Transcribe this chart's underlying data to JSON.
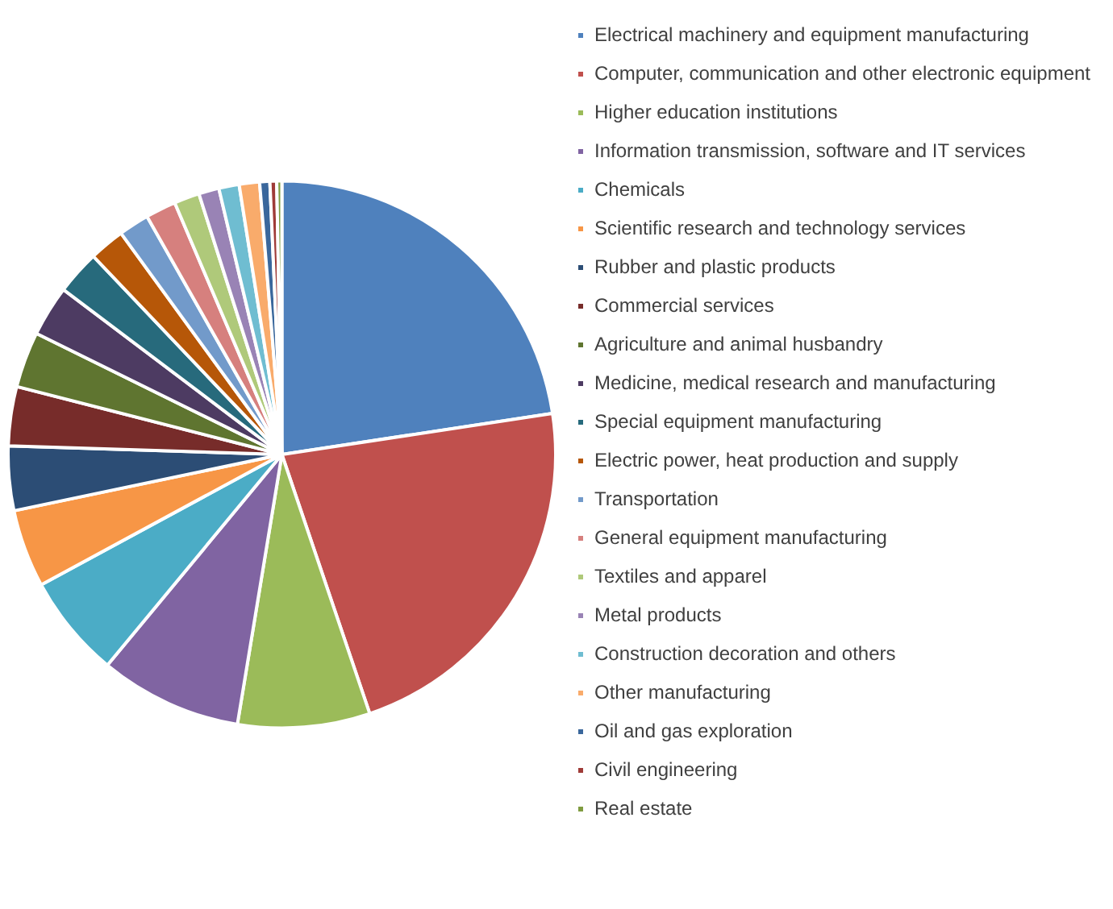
{
  "chart_data": {
    "type": "pie",
    "legend": "right",
    "categories": [
      "Electrical machinery and equipment manufacturing",
      "Computer, communication and other electronic equipment",
      "Higher education institutions",
      "Information transmission, software and IT services",
      "Chemicals",
      "Scientific research and technology services",
      "Rubber and plastic products",
      "Commercial services",
      "Agriculture and animal husbandry",
      "Medicine, medical research and manufacturing",
      "Special equipment manufacturing",
      "Electric power, heat production and supply",
      "Transportation",
      "General equipment manufacturing",
      "Textiles and apparel",
      "Metal products",
      "Construction decoration and others",
      "Other manufacturing",
      "Oil and gas exploration",
      "Civil engineering",
      "Real estate"
    ],
    "values": [
      22.6,
      22.2,
      7.8,
      8.4,
      6.1,
      4.6,
      3.8,
      3.5,
      3.3,
      3.0,
      2.6,
      2.1,
      1.8,
      1.8,
      1.5,
      1.2,
      1.2,
      1.2,
      0.6,
      0.4,
      0.3
    ],
    "colors": [
      "#4f81bd",
      "#c0504d",
      "#9bbb59",
      "#8064a2",
      "#4bacc6",
      "#f79646",
      "#2c4d75",
      "#772c2a",
      "#5f7530",
      "#4d3b62",
      "#276a7c",
      "#b65708",
      "#729aca",
      "#d6807e",
      "#afc97a",
      "#9983b5",
      "#6fbdd1",
      "#f9ab6b",
      "#3a679c",
      "#9f3b38",
      "#7f9c40"
    ]
  }
}
